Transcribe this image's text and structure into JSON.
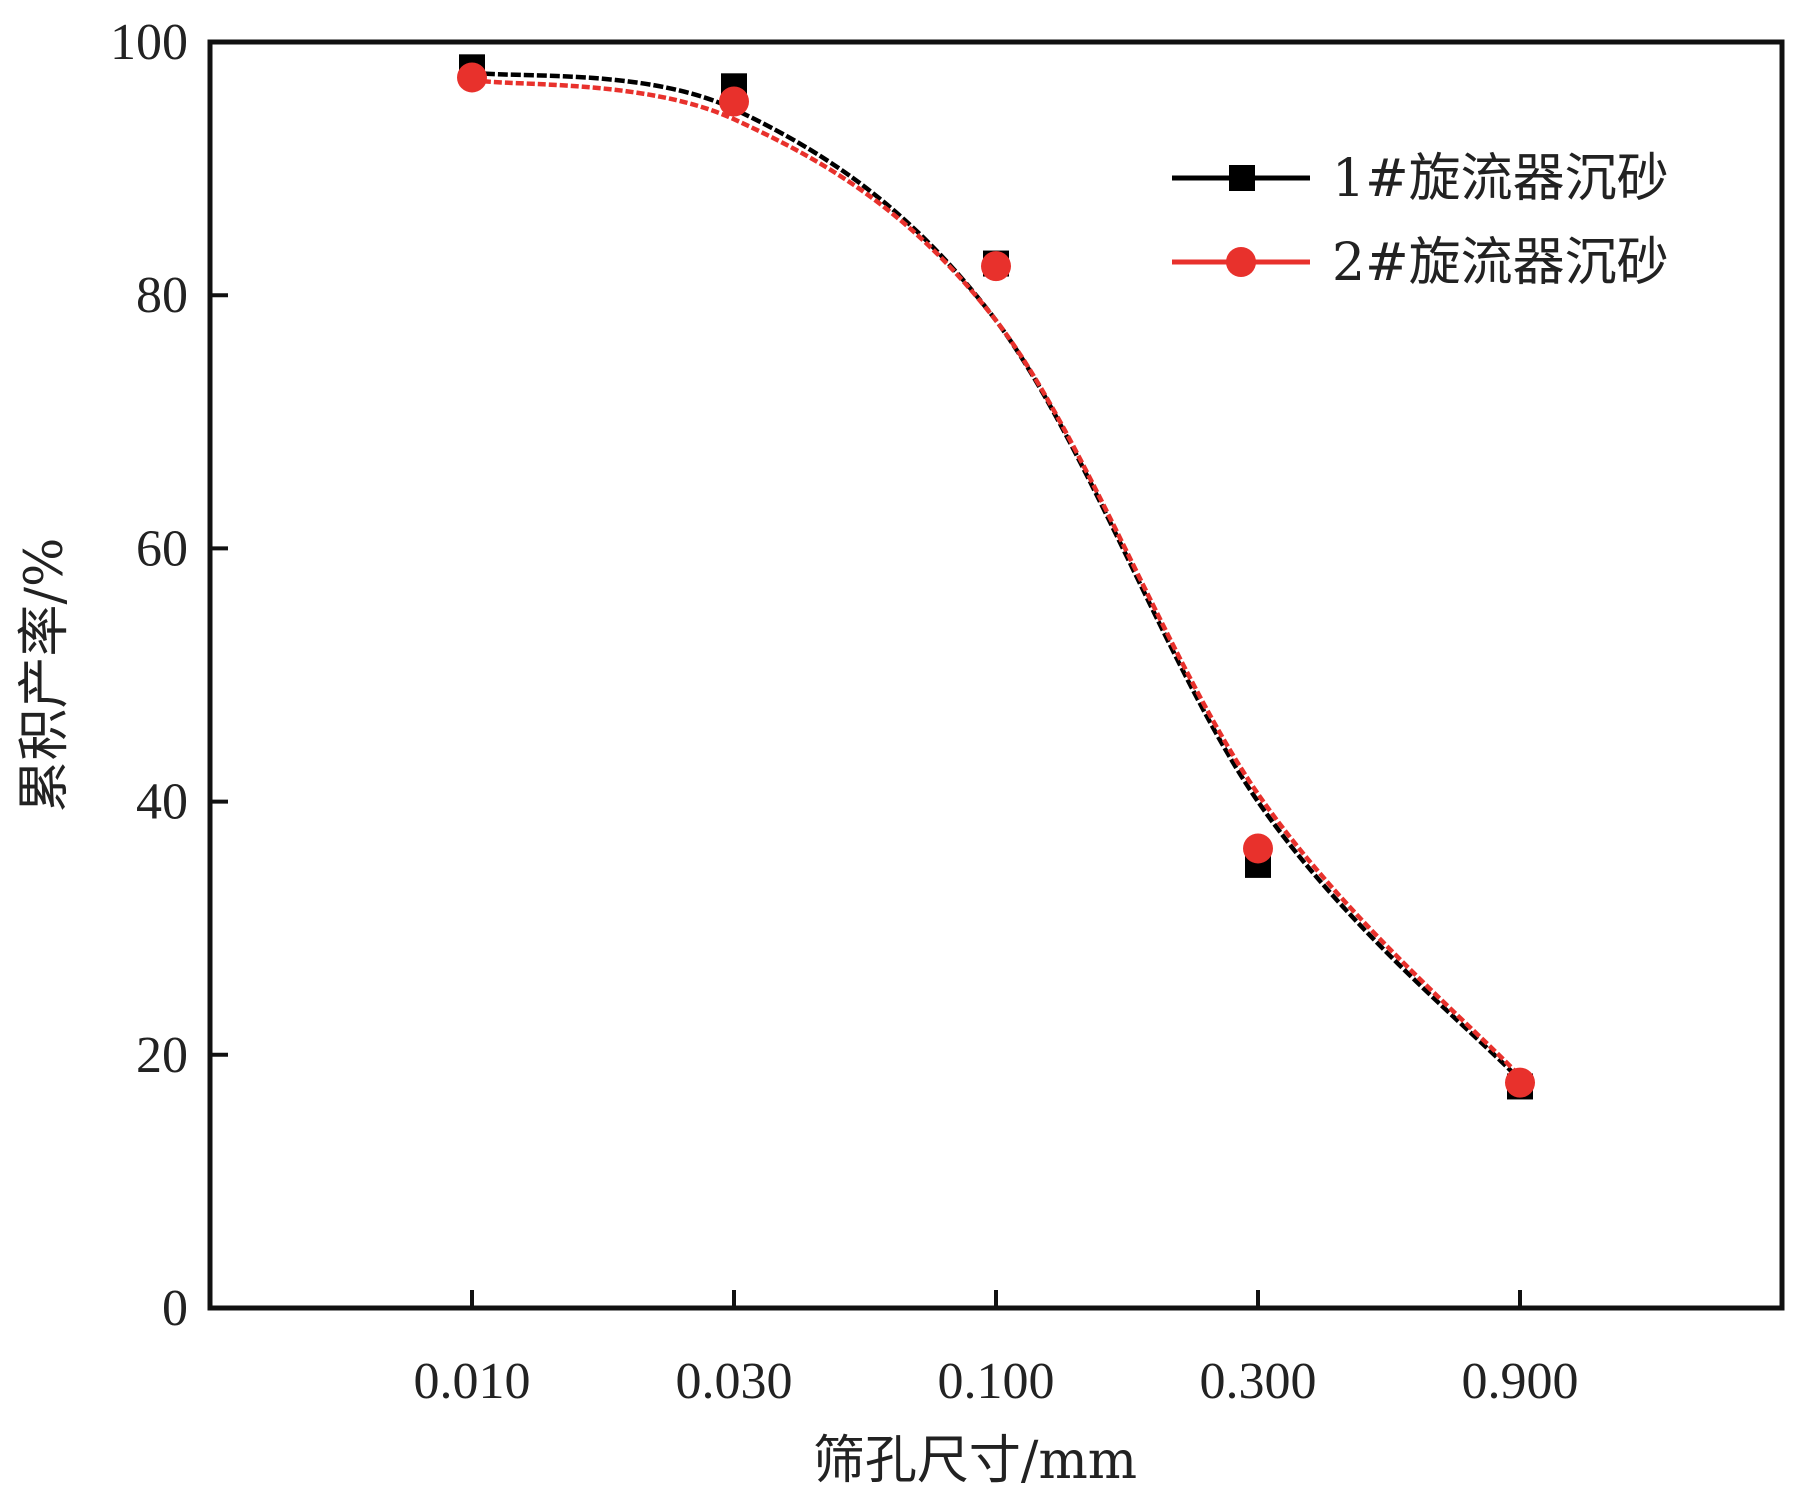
{
  "chart_data": {
    "type": "line",
    "xlabel": "筛孔尺寸/mm",
    "ylabel": "累积产率/%",
    "x_scale": "log",
    "categories": [
      "0.010",
      "0.030",
      "0.100",
      "0.300",
      "0.900"
    ],
    "x": [
      0.01,
      0.03,
      0.1,
      0.3,
      0.9
    ],
    "ylim": [
      0,
      100
    ],
    "yticks": [
      "0",
      "20",
      "40",
      "60",
      "80",
      "100"
    ],
    "grid": false,
    "legend_position": "top-right",
    "series": [
      {
        "name": "1#旋流器沉砂",
        "marker": "square",
        "color": "#000000",
        "values": [
          98.0,
          96.5,
          82.5,
          35.0,
          17.5
        ],
        "fit_values": [
          97.6,
          94.7,
          78.0,
          40.0,
          18.0
        ]
      },
      {
        "name": "2#旋流器沉砂",
        "marker": "circle",
        "color": "#e8312c",
        "values": [
          97.2,
          95.3,
          82.3,
          36.3,
          17.8
        ],
        "fit_values": [
          97.0,
          93.9,
          78.0,
          40.6,
          18.3
        ]
      }
    ]
  }
}
